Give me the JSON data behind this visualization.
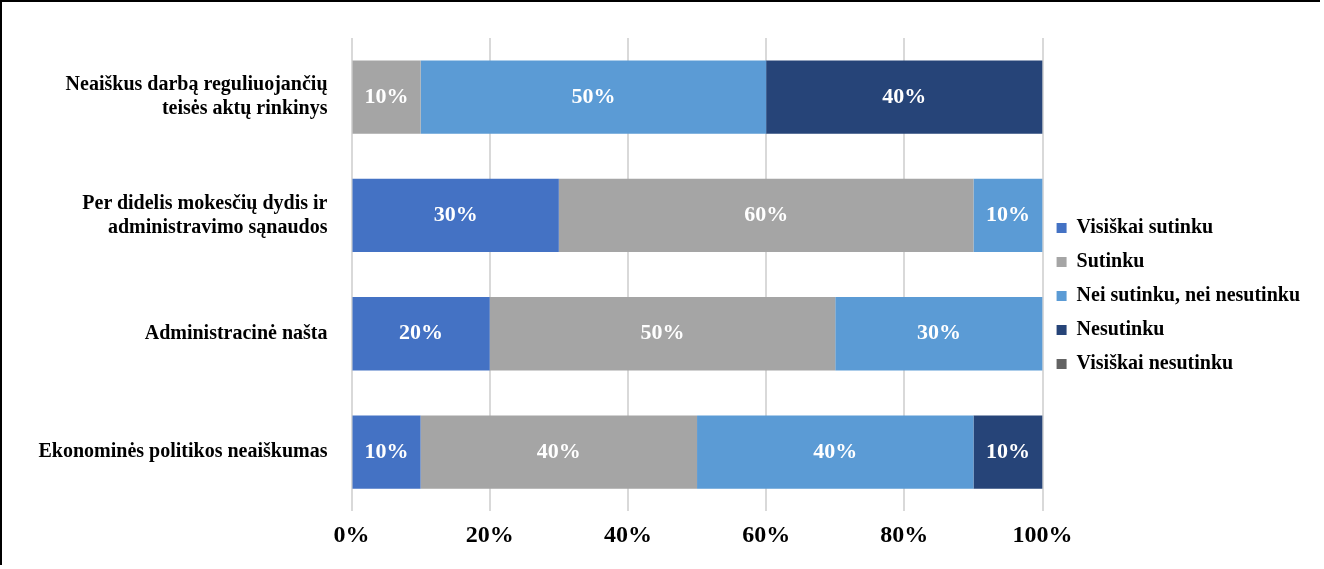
{
  "chart_data": {
    "type": "bar",
    "orientation": "horizontal",
    "stacked": true,
    "categories": [
      "Neaiškus darbą reguliuojančių teisės aktų rinkinys",
      "Per didelis mokesčių dydis ir administravimo sąnaudos",
      "Administracinė našta",
      "Ekonominės politikos neaiškumas"
    ],
    "series": [
      {
        "name": "Visiškai sutinku",
        "color": "#4472c4",
        "values": [
          null,
          30,
          20,
          10
        ],
        "value_labels": [
          null,
          "30%",
          "20%",
          "10%"
        ]
      },
      {
        "name": "Sutinku",
        "color": "#a5a5a5",
        "values": [
          10,
          60,
          50,
          40
        ],
        "value_labels": [
          "10%",
          "60%",
          "50%",
          "40%"
        ]
      },
      {
        "name": "Nei sutinku, nei nesutinku",
        "color": "#5b9bd5",
        "values": [
          50,
          10,
          30,
          40
        ],
        "value_labels": [
          "50%",
          "10%",
          "30%",
          "40%"
        ]
      },
      {
        "name": "Nesutinku",
        "color": "#264478",
        "values": [
          40,
          null,
          null,
          10
        ],
        "value_labels": [
          "40%",
          null,
          null,
          "10%"
        ]
      },
      {
        "name": "Visiškai nesutinku",
        "color": "#636363",
        "values": [
          null,
          null,
          null,
          null
        ]
      }
    ],
    "xlim": [
      0,
      100
    ],
    "xticks": [
      {
        "value": 0,
        "label": "0%"
      },
      {
        "value": 20,
        "label": "20%"
      },
      {
        "value": 40,
        "label": "40%"
      },
      {
        "value": 60,
        "label": "60%"
      },
      {
        "value": 80,
        "label": "80%"
      },
      {
        "value": 100,
        "label": "100%"
      }
    ],
    "grid": "x",
    "legend": "right"
  }
}
